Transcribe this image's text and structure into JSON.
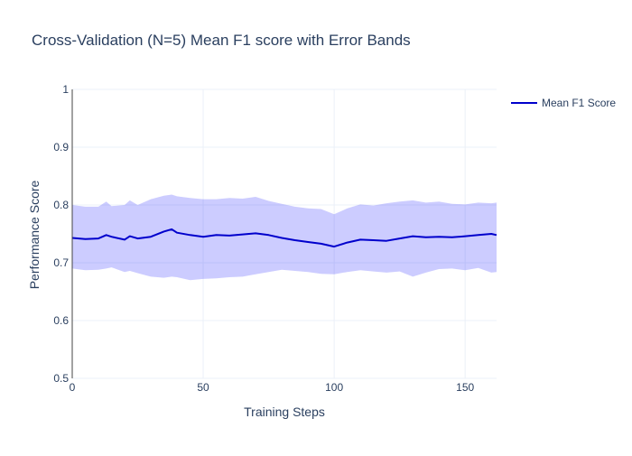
{
  "chart_data": {
    "type": "line",
    "title": "Cross-Validation (N=5) Mean F1 score with Error Bands",
    "xlabel": "Training Steps",
    "ylabel": "Performance Score",
    "xlim": [
      0,
      162
    ],
    "ylim": [
      0.5,
      1.0
    ],
    "xticks": [
      0,
      50,
      100,
      150
    ],
    "xtick_labels": [
      "0",
      "50",
      "100",
      "150"
    ],
    "yticks": [
      0.5,
      0.6,
      0.7,
      0.8,
      0.9,
      1.0
    ],
    "ytick_labels": [
      "0.5",
      "0.6",
      "0.7",
      "0.8",
      "0.9",
      "1"
    ],
    "grid": true,
    "legend_position": "top-right",
    "colors": {
      "line": "#0000cc",
      "band": "rgba(0,0,255,0.2)"
    },
    "series": [
      {
        "name": "Mean F1 Score",
        "x": [
          0,
          5,
          10,
          13,
          15,
          20,
          22,
          25,
          30,
          35,
          38,
          40,
          45,
          50,
          55,
          60,
          65,
          70,
          75,
          80,
          85,
          90,
          95,
          100,
          105,
          110,
          115,
          120,
          125,
          130,
          135,
          140,
          145,
          150,
          155,
          160,
          162
        ],
        "y": [
          0.743,
          0.741,
          0.742,
          0.748,
          0.745,
          0.74,
          0.746,
          0.742,
          0.745,
          0.754,
          0.758,
          0.752,
          0.748,
          0.745,
          0.748,
          0.747,
          0.749,
          0.751,
          0.748,
          0.743,
          0.739,
          0.736,
          0.733,
          0.728,
          0.735,
          0.74,
          0.739,
          0.738,
          0.742,
          0.746,
          0.744,
          0.745,
          0.744,
          0.746,
          0.748,
          0.75,
          0.748
        ],
        "lower": [
          0.69,
          0.687,
          0.688,
          0.69,
          0.692,
          0.684,
          0.686,
          0.682,
          0.676,
          0.674,
          0.676,
          0.675,
          0.67,
          0.672,
          0.673,
          0.675,
          0.676,
          0.68,
          0.684,
          0.688,
          0.686,
          0.684,
          0.681,
          0.68,
          0.684,
          0.687,
          0.685,
          0.683,
          0.685,
          0.676,
          0.683,
          0.689,
          0.69,
          0.687,
          0.691,
          0.683,
          0.684
        ],
        "upper": [
          0.8,
          0.797,
          0.797,
          0.806,
          0.798,
          0.8,
          0.808,
          0.8,
          0.81,
          0.816,
          0.818,
          0.815,
          0.812,
          0.81,
          0.81,
          0.812,
          0.811,
          0.814,
          0.807,
          0.802,
          0.797,
          0.794,
          0.793,
          0.784,
          0.794,
          0.801,
          0.799,
          0.803,
          0.806,
          0.808,
          0.804,
          0.806,
          0.802,
          0.801,
          0.804,
          0.803,
          0.804
        ]
      }
    ]
  }
}
